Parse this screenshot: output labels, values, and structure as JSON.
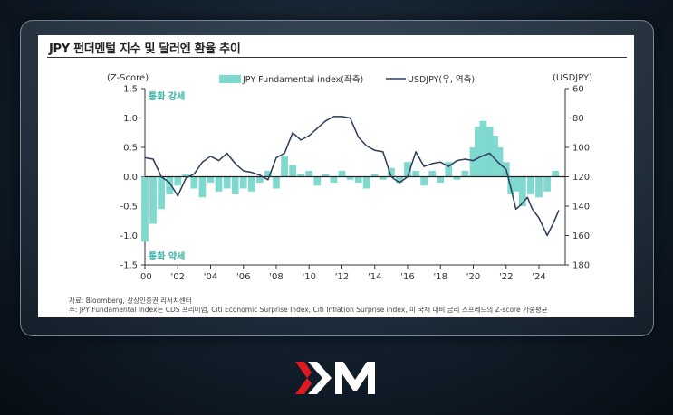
{
  "chart_data": {
    "type": "bar+line",
    "title": "JPY 펀더멘털 지수 및 달러엔 환율 추이",
    "left_axis_label": "(Z-Score)",
    "right_axis_label": "(USDJPY)",
    "left_ticks": [
      "1.5",
      "1.0",
      "0.5",
      "0.0",
      "-0.5",
      "-1.0",
      "-1.5"
    ],
    "right_ticks": [
      "60",
      "80",
      "100",
      "120",
      "140",
      "160",
      "180"
    ],
    "x_ticks": [
      "'00",
      "'02",
      "'04",
      "'06",
      "'08",
      "'10",
      "'12",
      "'14",
      "'16",
      "'18",
      "'20",
      "'22",
      "'24"
    ],
    "ylim_left": [
      -1.5,
      1.5
    ],
    "ylim_right": [
      180,
      60
    ],
    "legend": [
      "JPY Fundamental index(좌축)",
      "USDJPY(우, 역축)"
    ],
    "annotation_strong": "통화 강세",
    "annotation_weak": "통화 약세",
    "series": [
      {
        "name": "JPY Fundamental index(좌축)",
        "axis": "left",
        "color": "#7fd9cf",
        "x": [
          2000.0,
          2000.5,
          2001.0,
          2001.5,
          2002.0,
          2002.5,
          2003.0,
          2003.5,
          2004.0,
          2004.5,
          2005.0,
          2005.5,
          2006.0,
          2006.5,
          2007.0,
          2007.5,
          2008.0,
          2008.5,
          2009.0,
          2009.5,
          2010.0,
          2010.5,
          2011.0,
          2011.5,
          2012.0,
          2012.5,
          2013.0,
          2013.5,
          2014.0,
          2014.5,
          2015.0,
          2015.5,
          2016.0,
          2016.5,
          2017.0,
          2017.5,
          2018.0,
          2018.5,
          2019.0,
          2019.5,
          2020.0,
          2020.3,
          2020.6,
          2021.0,
          2021.3,
          2021.6,
          2022.0,
          2022.3,
          2022.6,
          2023.0,
          2023.5,
          2024.0,
          2024.5,
          2025.0
        ],
        "values": [
          -1.1,
          -0.8,
          -0.55,
          -0.3,
          -0.15,
          0.05,
          -0.2,
          -0.35,
          -0.1,
          -0.25,
          -0.2,
          -0.3,
          -0.2,
          -0.25,
          -0.1,
          0.1,
          -0.2,
          0.35,
          0.2,
          0.05,
          0.1,
          -0.15,
          0.05,
          -0.1,
          0.1,
          -0.05,
          -0.1,
          -0.2,
          0.05,
          -0.05,
          0.15,
          -0.1,
          0.25,
          0.1,
          -0.15,
          0.1,
          -0.1,
          0.25,
          -0.05,
          0.1,
          0.5,
          0.85,
          0.95,
          0.85,
          0.7,
          0.5,
          0.25,
          -0.3,
          -0.25,
          -0.5,
          -0.3,
          -0.35,
          -0.25,
          0.1
        ]
      },
      {
        "name": "USDJPY(우, 역축)",
        "axis": "right",
        "color": "#2b3b5a",
        "x": [
          2000.0,
          2000.5,
          2001.0,
          2001.5,
          2002.0,
          2002.5,
          2003.0,
          2003.5,
          2004.0,
          2004.5,
          2005.0,
          2005.5,
          2006.0,
          2006.5,
          2007.0,
          2007.5,
          2008.0,
          2008.5,
          2009.0,
          2009.5,
          2010.0,
          2010.5,
          2011.0,
          2011.5,
          2012.0,
          2012.5,
          2013.0,
          2013.5,
          2014.0,
          2014.5,
          2015.0,
          2015.5,
          2016.0,
          2016.5,
          2017.0,
          2017.5,
          2018.0,
          2018.5,
          2019.0,
          2019.5,
          2020.0,
          2020.5,
          2021.0,
          2021.5,
          2022.0,
          2022.3,
          2022.6,
          2022.9,
          2023.3,
          2023.6,
          2024.0,
          2024.5,
          2024.9,
          2025.2
        ],
        "values": [
          107,
          108,
          120,
          124,
          133,
          121,
          118,
          110,
          106,
          109,
          104,
          111,
          116,
          117,
          119,
          122,
          107,
          104,
          90,
          95,
          92,
          87,
          82,
          79,
          79,
          80,
          93,
          99,
          102,
          103,
          120,
          124,
          120,
          103,
          113,
          111,
          110,
          113,
          109,
          108,
          109,
          106,
          104,
          110,
          115,
          128,
          142,
          139,
          134,
          142,
          148,
          160,
          151,
          143
        ]
      }
    ],
    "source_note": "자료: Bloomberg, 상상인증권 리서치센터",
    "footnote": "주: JPY Fundamental Index는 CDS 프리미엄, Citi Economic Surprise Index, Citi Inflation Surprise index, 미 국채 대비 금리 스프레드의 Z-score 가중평균"
  },
  "logo_label": "XM",
  "colors": {
    "bar": "#7fd9cf",
    "line": "#2b3b5a",
    "annotation": "#36b3a5",
    "logo_red": "#e11a22"
  }
}
